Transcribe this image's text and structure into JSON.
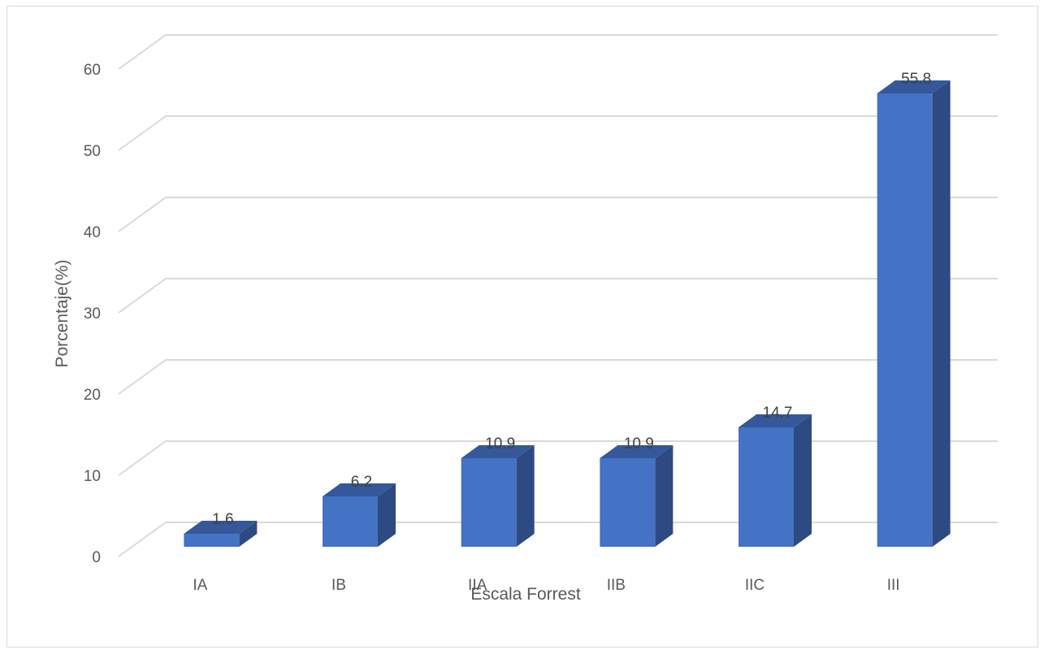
{
  "chart_data": {
    "type": "bar",
    "style": "3d-column",
    "categories": [
      "IA",
      "IB",
      "IIA",
      "IIB",
      "IIC",
      "III"
    ],
    "values": [
      1.6,
      6.2,
      10.9,
      10.9,
      14.7,
      55.8
    ],
    "data_labels": [
      "1.6",
      "6.2",
      "10.9",
      "10.9",
      "14.7",
      "55.8"
    ],
    "xlabel": "Escala Forrest",
    "ylabel": "Porcentaje(%)",
    "ylim": [
      0,
      60
    ],
    "yticks": [
      0,
      10,
      20,
      30,
      40,
      50,
      60
    ],
    "grid": true,
    "legend": "none",
    "colors": {
      "front": "#4472c4",
      "side": "#2e4a82",
      "top": "#34589a",
      "grid": "#d9d9d9",
      "frame": "#d9d9d9"
    }
  }
}
